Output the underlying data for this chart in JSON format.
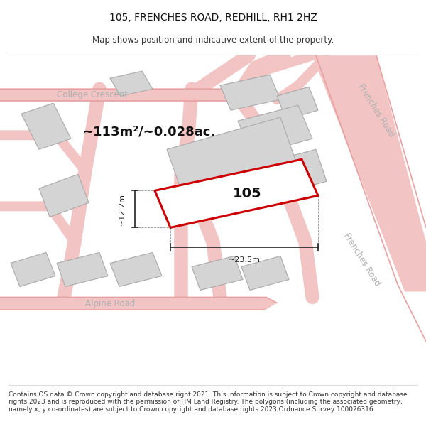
{
  "title": "105, FRENCHES ROAD, REDHILL, RH1 2HZ",
  "subtitle": "Map shows position and indicative extent of the property.",
  "footer": "Contains OS data © Crown copyright and database right 2021. This information is subject to Crown copyright and database rights 2023 and is reproduced with the permission of HM Land Registry. The polygons (including the associated geometry, namely x, y co-ordinates) are subject to Crown copyright and database rights 2023 Ordnance Survey 100026316.",
  "area_label": "~113m²/~0.028ac.",
  "width_label": "~23.5m",
  "height_label": "~12.2m",
  "property_number": "105",
  "bg_color": "#ffffff",
  "map_bg": "#ffffff",
  "road_color": "#f2c4c4",
  "road_edge_color": "#e8a0a0",
  "building_fill": "#d4d4d4",
  "building_edge": "#aaaaaa",
  "property_fill": "#e8d8d8",
  "property_edge": "#cc0000",
  "road_label_color": "#b0b0b0",
  "dim_color": "#222222",
  "title_fontsize": 10,
  "subtitle_fontsize": 8.5,
  "footer_fontsize": 6.5,
  "area_fontsize": 13,
  "dim_fontsize": 8,
  "road_lw": 1.5,
  "prop_lw": 2.2
}
